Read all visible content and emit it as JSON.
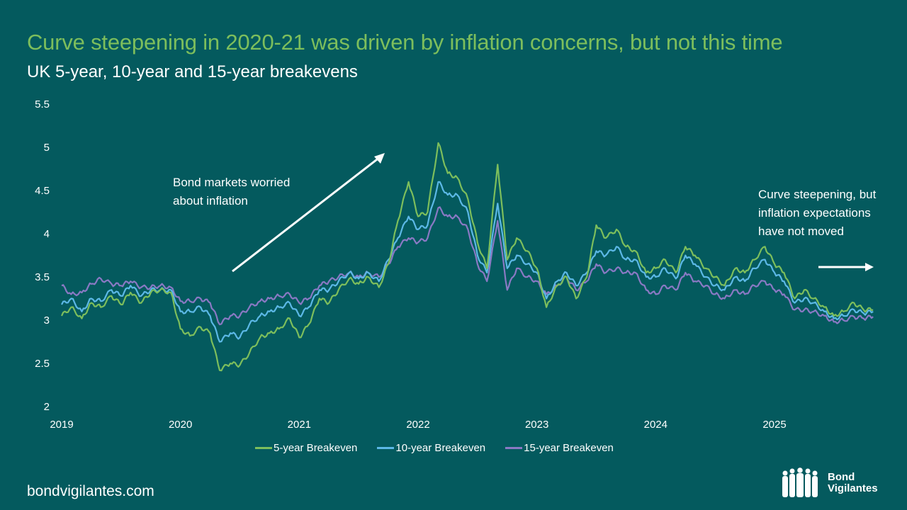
{
  "header": {
    "title": "Curve steepening in 2020-21 was driven by inflation concerns, but not this time",
    "subtitle": "UK 5-year, 10-year and 15-year breakevens"
  },
  "annotations": {
    "left_line1": "Bond markets worried",
    "left_line2": "about inflation",
    "right_line1": "Curve steepening, but",
    "right_line2": "inflation expectations",
    "right_line3": "have not moved"
  },
  "footer": {
    "website": "bondvigilantes.com",
    "logo_line1": "Bond",
    "logo_line2": "Vigilantes",
    "logo_icon": "people-silhouettes-icon"
  },
  "colors": {
    "background": "#045a5e",
    "title": "#7dbe5c",
    "series_5y": "#7dbe5c",
    "series_10y": "#5cb8e6",
    "series_15y": "#8a79c4"
  },
  "chart_data": {
    "type": "line",
    "title": "UK 5-year, 10-year and 15-year breakevens",
    "xlabel": "",
    "ylabel": "",
    "ylim": [
      2,
      5.5
    ],
    "yticks": [
      "5.5",
      "5",
      "4.5",
      "4",
      "3.5",
      "3",
      "2.5",
      "2"
    ],
    "xlim": [
      2019,
      2025.85
    ],
    "xticks": [
      "2019",
      "2020",
      "2021",
      "2022",
      "2023",
      "2024",
      "2025"
    ],
    "grid": false,
    "legend_position": "bottom",
    "x": [
      2019.0,
      2019.08,
      2019.17,
      2019.25,
      2019.33,
      2019.42,
      2019.5,
      2019.58,
      2019.67,
      2019.75,
      2019.83,
      2019.92,
      2020.0,
      2020.08,
      2020.17,
      2020.25,
      2020.33,
      2020.42,
      2020.5,
      2020.58,
      2020.67,
      2020.75,
      2020.83,
      2020.92,
      2021.0,
      2021.08,
      2021.17,
      2021.25,
      2021.33,
      2021.42,
      2021.5,
      2021.58,
      2021.67,
      2021.75,
      2021.83,
      2021.92,
      2022.0,
      2022.08,
      2022.17,
      2022.25,
      2022.33,
      2022.42,
      2022.5,
      2022.58,
      2022.67,
      2022.75,
      2022.83,
      2022.92,
      2023.0,
      2023.08,
      2023.17,
      2023.25,
      2023.33,
      2023.42,
      2023.5,
      2023.58,
      2023.67,
      2023.75,
      2023.83,
      2023.92,
      2024.0,
      2024.08,
      2024.17,
      2024.25,
      2024.33,
      2024.42,
      2024.5,
      2024.58,
      2024.67,
      2024.75,
      2024.83,
      2024.92,
      2025.0,
      2025.08,
      2025.17,
      2025.25,
      2025.33,
      2025.42,
      2025.5,
      2025.58,
      2025.67,
      2025.75,
      2025.83
    ],
    "series": [
      {
        "name": "5-year Breakeven",
        "values": [
          3.05,
          3.15,
          3.02,
          3.2,
          3.15,
          3.28,
          3.18,
          3.32,
          3.2,
          3.32,
          3.35,
          3.32,
          2.9,
          2.82,
          2.92,
          2.85,
          2.42,
          2.5,
          2.48,
          2.62,
          2.8,
          2.85,
          2.9,
          3.02,
          2.8,
          2.95,
          3.25,
          3.2,
          3.35,
          3.48,
          3.42,
          3.5,
          3.38,
          3.65,
          4.15,
          4.6,
          4.2,
          4.25,
          5.05,
          4.7,
          4.65,
          4.4,
          3.9,
          3.6,
          4.8,
          3.7,
          3.95,
          3.8,
          3.6,
          3.15,
          3.4,
          3.5,
          3.25,
          3.5,
          4.1,
          3.95,
          4.05,
          3.85,
          3.8,
          3.55,
          3.6,
          3.7,
          3.55,
          3.85,
          3.75,
          3.6,
          3.5,
          3.4,
          3.6,
          3.55,
          3.7,
          3.85,
          3.65,
          3.55,
          3.25,
          3.35,
          3.25,
          3.15,
          3.05,
          3.1,
          3.2,
          3.12,
          3.12
        ]
      },
      {
        "name": "10-year Breakeven",
        "values": [
          3.18,
          3.25,
          3.1,
          3.25,
          3.22,
          3.35,
          3.28,
          3.4,
          3.28,
          3.35,
          3.35,
          3.35,
          3.1,
          3.1,
          3.15,
          3.05,
          2.75,
          2.85,
          2.8,
          2.95,
          3.05,
          3.1,
          3.15,
          3.2,
          3.05,
          3.15,
          3.35,
          3.35,
          3.45,
          3.55,
          3.48,
          3.55,
          3.45,
          3.7,
          3.95,
          4.2,
          4.05,
          4.1,
          4.6,
          4.45,
          4.45,
          4.25,
          3.75,
          3.55,
          4.35,
          3.6,
          3.75,
          3.65,
          3.55,
          3.25,
          3.45,
          3.55,
          3.4,
          3.55,
          3.8,
          3.75,
          3.85,
          3.7,
          3.7,
          3.5,
          3.5,
          3.6,
          3.48,
          3.75,
          3.65,
          3.5,
          3.4,
          3.35,
          3.5,
          3.45,
          3.6,
          3.7,
          3.55,
          3.45,
          3.2,
          3.25,
          3.2,
          3.1,
          3.02,
          3.05,
          3.12,
          3.08,
          3.1
        ]
      },
      {
        "name": "15-year Breakeven",
        "values": [
          3.4,
          3.3,
          3.32,
          3.42,
          3.48,
          3.42,
          3.4,
          3.45,
          3.38,
          3.38,
          3.4,
          3.38,
          3.22,
          3.22,
          3.25,
          3.2,
          2.95,
          3.05,
          3.05,
          3.15,
          3.22,
          3.25,
          3.28,
          3.3,
          3.2,
          3.25,
          3.4,
          3.45,
          3.5,
          3.55,
          3.5,
          3.55,
          3.5,
          3.65,
          3.85,
          3.95,
          3.9,
          3.95,
          4.3,
          4.2,
          4.2,
          4.05,
          3.65,
          3.45,
          4.15,
          3.35,
          3.6,
          3.5,
          3.45,
          3.3,
          3.4,
          3.5,
          3.35,
          3.45,
          3.65,
          3.55,
          3.6,
          3.55,
          3.55,
          3.35,
          3.3,
          3.4,
          3.35,
          3.55,
          3.45,
          3.4,
          3.3,
          3.25,
          3.35,
          3.3,
          3.4,
          3.45,
          3.35,
          3.3,
          3.12,
          3.12,
          3.1,
          3.05,
          2.98,
          3.0,
          3.04,
          3.02,
          3.04
        ]
      }
    ]
  }
}
